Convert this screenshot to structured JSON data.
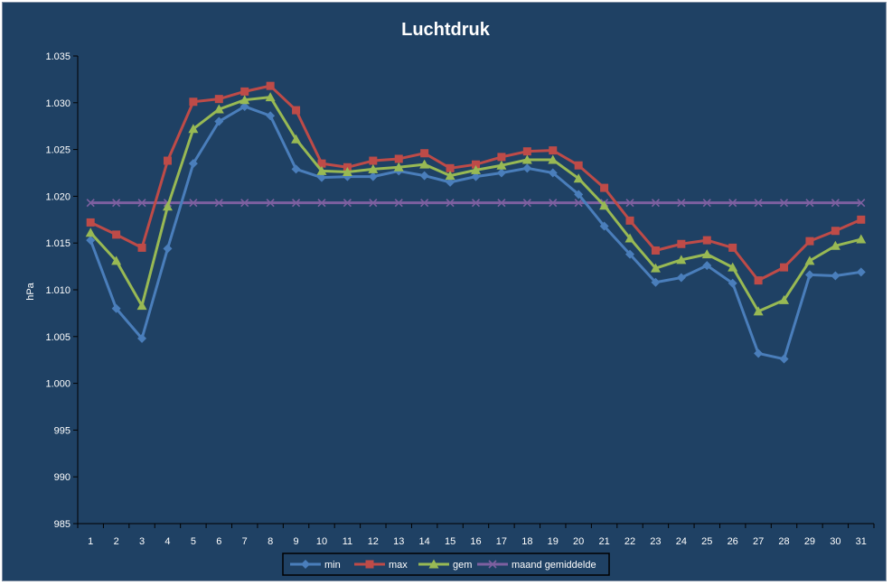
{
  "chart_data": {
    "type": "line",
    "title": "Luchtdruk",
    "xlabel": "",
    "ylabel": "hPa",
    "ylim": [
      985,
      1035
    ],
    "y_ticks": [
      "985",
      "990",
      "995",
      "1.000",
      "1.005",
      "1.010",
      "1.015",
      "1.020",
      "1.025",
      "1.030",
      "1.035"
    ],
    "categories": [
      "1",
      "2",
      "3",
      "4",
      "5",
      "6",
      "7",
      "8",
      "9",
      "10",
      "11",
      "12",
      "13",
      "14",
      "15",
      "16",
      "17",
      "18",
      "19",
      "20",
      "21",
      "22",
      "23",
      "24",
      "25",
      "26",
      "27",
      "28",
      "29",
      "30",
      "31"
    ],
    "grid": false,
    "legend_position": "bottom",
    "background_color": "#1f4164",
    "series": [
      {
        "name": "min",
        "color": "#4a7ebb",
        "marker": "diamond",
        "values": [
          1015.3,
          1008.0,
          1004.8,
          1014.4,
          1023.5,
          1028.0,
          1029.6,
          1028.6,
          1022.9,
          1022.0,
          1022.1,
          1022.1,
          1022.7,
          1022.2,
          1021.5,
          1022.1,
          1022.5,
          1023.0,
          1022.5,
          1020.2,
          1016.8,
          1013.8,
          1010.8,
          1011.3,
          1012.6,
          1010.7,
          1003.2,
          1002.6,
          1011.6,
          1011.5,
          1011.9
        ]
      },
      {
        "name": "max",
        "color": "#be4b48",
        "marker": "square",
        "values": [
          1017.2,
          1015.9,
          1014.5,
          1023.8,
          1030.1,
          1030.4,
          1031.2,
          1031.8,
          1029.2,
          1023.5,
          1023.1,
          1023.8,
          1024.0,
          1024.6,
          1023.0,
          1023.4,
          1024.2,
          1024.8,
          1024.9,
          1023.3,
          1020.9,
          1017.4,
          1014.2,
          1014.9,
          1015.3,
          1014.5,
          1011.0,
          1012.4,
          1015.2,
          1016.3,
          1017.5
        ]
      },
      {
        "name": "gem",
        "color": "#98b954",
        "marker": "triangle",
        "values": [
          1016.1,
          1013.1,
          1008.3,
          1018.9,
          1027.2,
          1029.3,
          1030.3,
          1030.6,
          1026.1,
          1022.7,
          1022.6,
          1022.9,
          1023.1,
          1023.4,
          1022.2,
          1022.8,
          1023.3,
          1023.9,
          1023.9,
          1021.9,
          1019.0,
          1015.5,
          1012.3,
          1013.2,
          1013.8,
          1012.4,
          1007.7,
          1008.9,
          1013.1,
          1014.7,
          1015.4
        ]
      },
      {
        "name": "maand gemiddelde",
        "color": "#7d60a0",
        "marker": "x",
        "values": [
          1019.3,
          1019.3,
          1019.3,
          1019.3,
          1019.3,
          1019.3,
          1019.3,
          1019.3,
          1019.3,
          1019.3,
          1019.3,
          1019.3,
          1019.3,
          1019.3,
          1019.3,
          1019.3,
          1019.3,
          1019.3,
          1019.3,
          1019.3,
          1019.3,
          1019.3,
          1019.3,
          1019.3,
          1019.3,
          1019.3,
          1019.3,
          1019.3,
          1019.3,
          1019.3,
          1019.3
        ]
      }
    ]
  }
}
